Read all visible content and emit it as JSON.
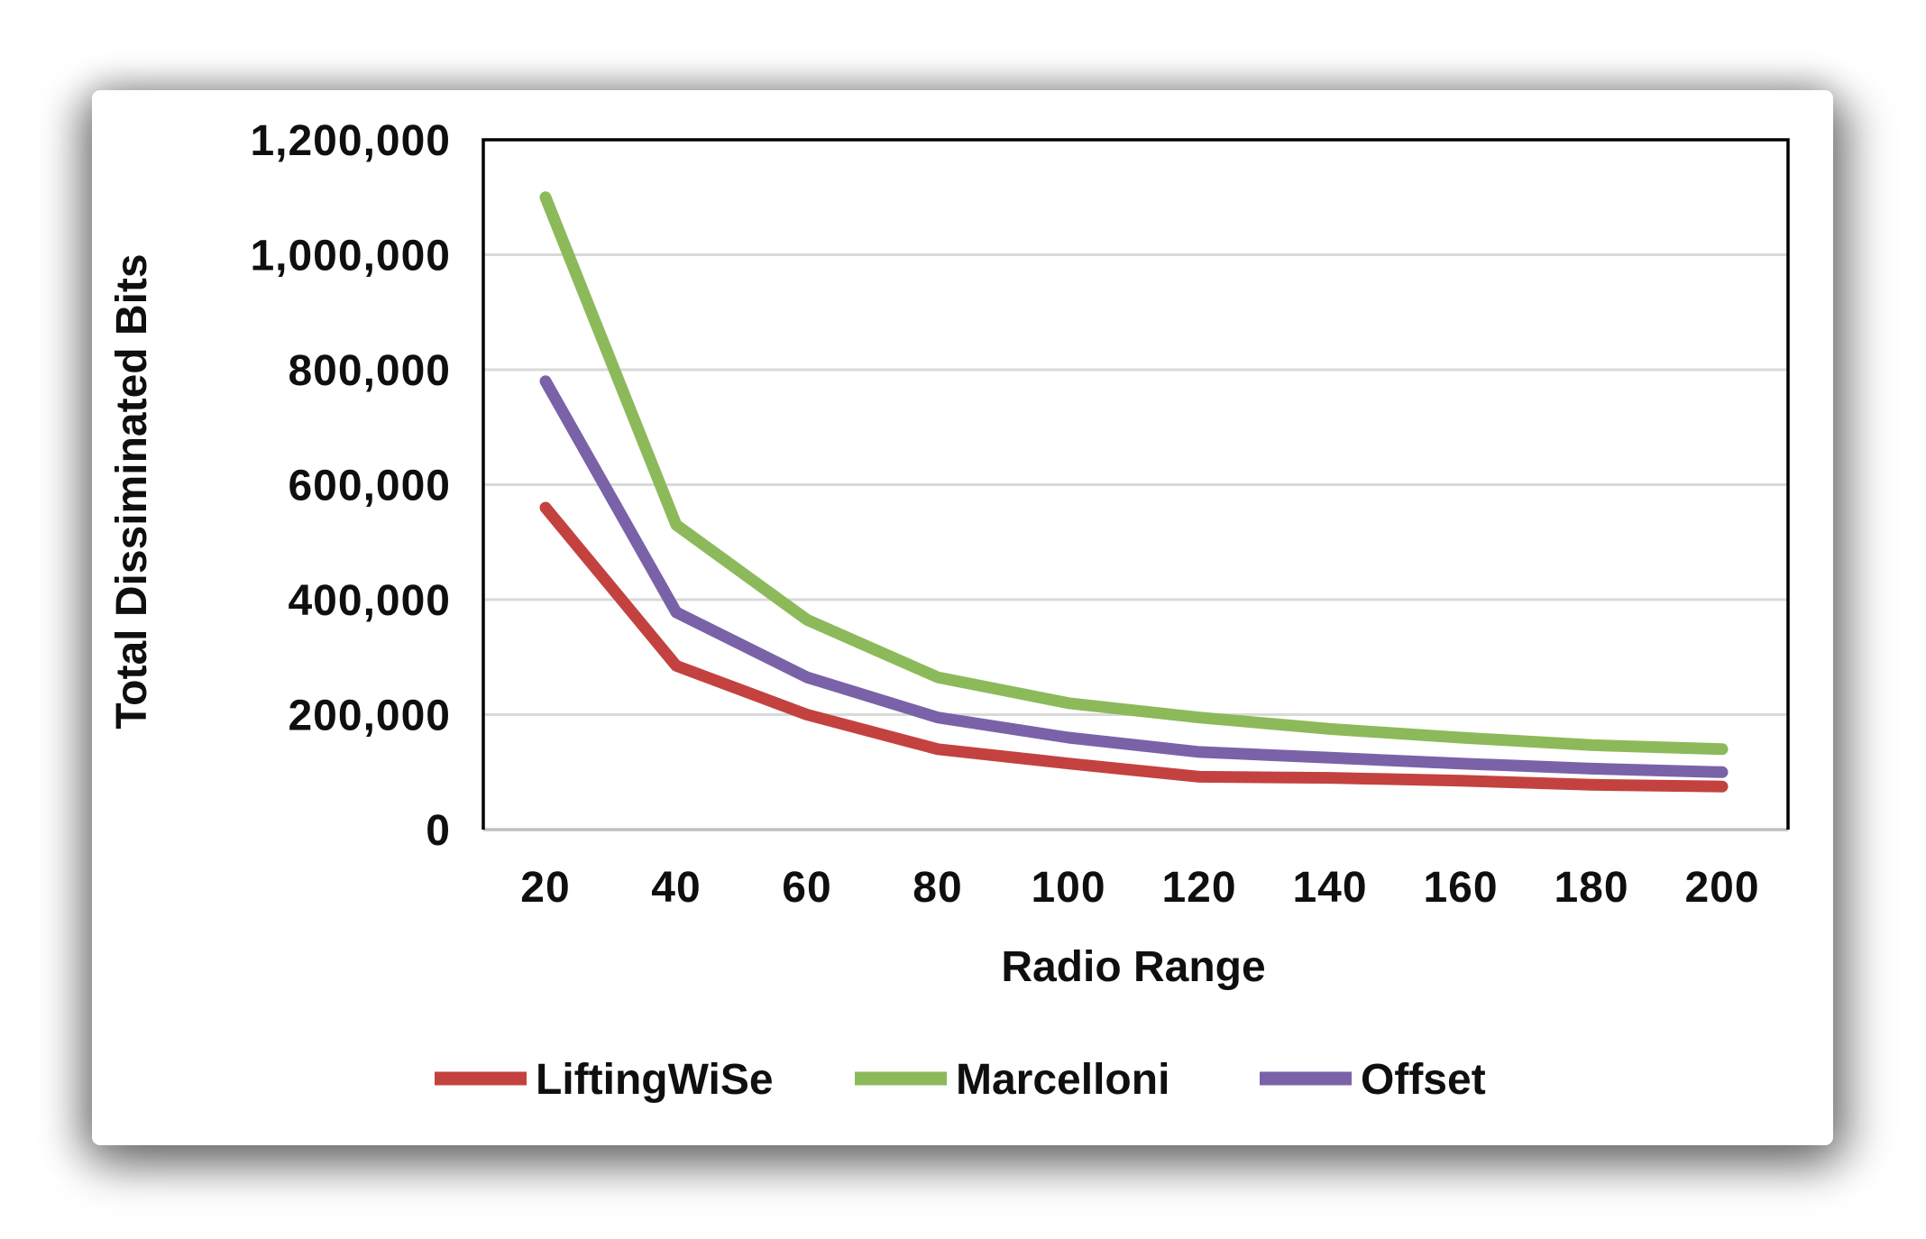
{
  "chart_data": {
    "type": "line",
    "title": "",
    "xlabel": "Radio Range",
    "ylabel": "Total Dissiminated Bits",
    "x": [
      20,
      40,
      60,
      80,
      100,
      120,
      140,
      160,
      180,
      200
    ],
    "x_tick_labels": [
      "20",
      "40",
      "60",
      "80",
      "100",
      "120",
      "140",
      "160",
      "180",
      "200"
    ],
    "y_ticks": [
      0,
      200000,
      400000,
      600000,
      800000,
      1000000,
      1200000
    ],
    "y_tick_labels": [
      "0",
      "200,000",
      "400,000",
      "600,000",
      "800,000",
      "1,000,000",
      "1,200,000"
    ],
    "xlim": [
      20,
      200
    ],
    "ylim": [
      0,
      1200000
    ],
    "grid": "horizontal",
    "legend_position": "bottom",
    "series": [
      {
        "name": "LiftingWiSe",
        "color": "#C3423F",
        "values": [
          560000,
          285000,
          200000,
          140000,
          115000,
          92000,
          90000,
          85000,
          78000,
          75000
        ]
      },
      {
        "name": "Marcelloni",
        "color": "#8CBA5A",
        "values": [
          1100000,
          530000,
          365000,
          265000,
          220000,
          195000,
          175000,
          160000,
          147000,
          140000
        ]
      },
      {
        "name": "Offset",
        "color": "#7A62A8",
        "values": [
          780000,
          378000,
          265000,
          195000,
          160000,
          135000,
          125000,
          115000,
          106000,
          100000
        ]
      }
    ],
    "colors": {
      "grid": "#D9D9D9",
      "baseline": "#BFBFBF",
      "frame": "#000000",
      "text": "#0F0F0F",
      "plot_background": "#FFFFFF"
    }
  }
}
